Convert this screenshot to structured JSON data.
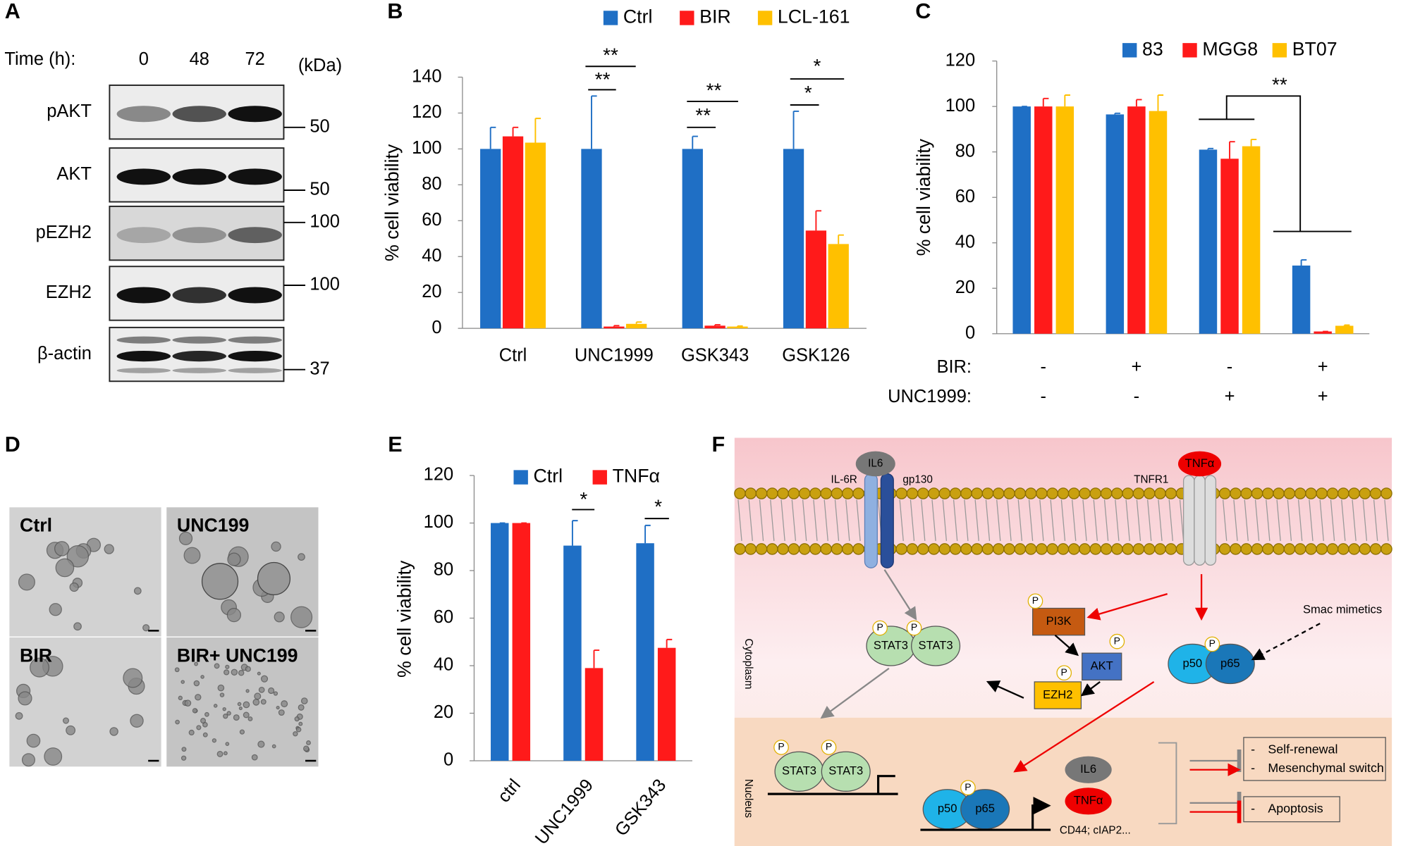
{
  "panel_labels": [
    "A",
    "B",
    "C",
    "D",
    "E",
    "F"
  ],
  "blot": {
    "time_label": "Time (h):",
    "times": [
      "0",
      "48",
      "72"
    ],
    "unit": "(kDa)",
    "proteins": [
      "pAKT",
      "AKT",
      "pEZH2",
      "EZH2",
      "β-actin"
    ],
    "markers": [
      "50",
      "50",
      "100",
      "100",
      "37"
    ]
  },
  "chart_data": [
    {
      "type": "bar",
      "ylabel": "% cell viability",
      "categories": [
        "Ctrl",
        "UNC1999",
        "GSK343",
        "GSK126"
      ],
      "series": [
        {
          "name": "Ctrl",
          "color": "#1f6fc5",
          "values": [
            100,
            100,
            100,
            100
          ],
          "errors": [
            12,
            29.5,
            7,
            21
          ]
        },
        {
          "name": "BIR",
          "color": "#ff1a1a",
          "values": [
            107,
            1,
            1.5,
            54.5
          ],
          "errors": [
            5,
            0.5,
            0.5,
            11
          ]
        },
        {
          "name": "LCL-161",
          "color": "#ffc000",
          "values": [
            103.5,
            2.5,
            1,
            47
          ],
          "errors": [
            13.5,
            1,
            0.3,
            5
          ]
        }
      ],
      "ylim": [
        0,
        140
      ],
      "yticks": [
        0,
        20,
        40,
        60,
        80,
        100,
        120,
        140
      ],
      "annotations": [
        "**",
        "**",
        "**",
        "**",
        "*",
        "*"
      ]
    },
    {
      "type": "bar",
      "ylabel": "% cell viability",
      "categories": [
        null,
        null,
        null,
        null
      ],
      "conditions": [
        {
          "label": "BIR:",
          "values": [
            "-",
            "+",
            "-",
            "+"
          ]
        },
        {
          "label": "UNC1999:",
          "values": [
            "-",
            "-",
            "+",
            "+"
          ]
        }
      ],
      "series": [
        {
          "name": "83",
          "color": "#1f6fc5",
          "values": [
            100,
            96.5,
            81,
            30
          ],
          "errors": [
            0,
            0.5,
            0.5,
            2.5
          ]
        },
        {
          "name": "MGG8",
          "color": "#ff1a1a",
          "values": [
            100,
            100,
            77,
            1
          ],
          "errors": [
            3.5,
            3,
            7.5,
            0
          ]
        },
        {
          "name": "BT07",
          "color": "#ffc000",
          "values": [
            100,
            98,
            82.5,
            3.5
          ],
          "errors": [
            5,
            7,
            3,
            0.3
          ]
        }
      ],
      "ylim": [
        0,
        120
      ],
      "yticks": [
        0,
        20,
        40,
        60,
        80,
        100,
        120
      ],
      "annotations": [
        "**"
      ]
    },
    {
      "type": "bar",
      "ylabel": "% cell viability",
      "categories": [
        "ctrl",
        "UNC1999",
        "GSK343"
      ],
      "series": [
        {
          "name": "Ctrl",
          "color": "#1f6fc5",
          "values": [
            100,
            90.5,
            91.5
          ],
          "errors": [
            0,
            10.5,
            7.5
          ]
        },
        {
          "name": "TNFα",
          "color": "#ff1a1a",
          "values": [
            100,
            39,
            47.5
          ],
          "errors": [
            0,
            7.5,
            3.5
          ]
        }
      ],
      "ylim": [
        0,
        120
      ],
      "yticks": [
        0,
        20,
        40,
        60,
        80,
        100,
        120
      ],
      "annotations": [
        "*",
        "*"
      ]
    }
  ],
  "micrographs": {
    "labels": [
      "Ctrl",
      "UNC199",
      "BIR",
      "BIR+ UNC199"
    ]
  },
  "pathway": {
    "phospho": "P",
    "il6": "IL6",
    "il6r": "IL-6R",
    "gp130": "gp130",
    "tnfa": "TNFα",
    "tnfr1": "TNFR1",
    "pi3k": "PI3K",
    "akt": "AKT",
    "ezh2": "EZH2",
    "stat3": "STAT3",
    "p50": "p50",
    "p65": "p65",
    "smac": "Smac mimetics",
    "cytoplasm": "Cytoplasm",
    "nucleus": "Nucleus",
    "targets": "CD44; cIAP2...",
    "bullet": "-",
    "outcomes": [
      "Self-renewal",
      "Mesenchymal switch",
      "Apoptosis"
    ]
  }
}
